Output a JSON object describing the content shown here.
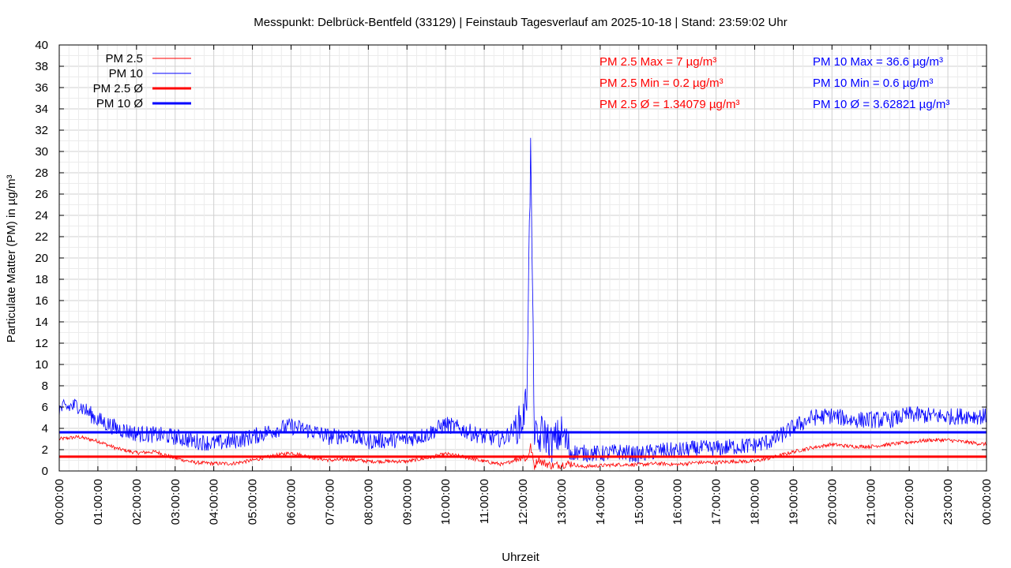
{
  "chart_data": {
    "type": "line",
    "title": "Messpunkt: Delbrück-Bentfeld (33129) | Feinstaub Tagesverlauf am 2025-10-18 | Stand: 23:59:02 Uhr",
    "xlabel": "Uhrzeit",
    "ylabel": "Particulate Matter (PM) in µg/m³",
    "ylim": [
      0,
      40
    ],
    "xlim_hours": [
      0,
      24
    ],
    "grid": true,
    "legend_position": "top-left",
    "x_tick_labels": [
      "00:00:00",
      "01:00:00",
      "02:00:00",
      "03:00:00",
      "04:00:00",
      "05:00:00",
      "06:00:00",
      "07:00:00",
      "08:00:00",
      "09:00:00",
      "10:00:00",
      "11:00:00",
      "12:00:00",
      "13:00:00",
      "14:00:00",
      "15:00:00",
      "16:00:00",
      "17:00:00",
      "18:00:00",
      "19:00:00",
      "20:00:00",
      "21:00:00",
      "22:00:00",
      "23:00:00",
      "00:00:00"
    ],
    "y_ticks": [
      0,
      2,
      4,
      6,
      8,
      10,
      12,
      14,
      16,
      18,
      20,
      22,
      24,
      26,
      28,
      30,
      32,
      34,
      36,
      38,
      40
    ],
    "x_hours": [
      0,
      0.5,
      1,
      1.5,
      2,
      2.5,
      3,
      3.5,
      4,
      4.5,
      5,
      5.5,
      6,
      6.5,
      7,
      7.5,
      8,
      8.5,
      9,
      9.5,
      10,
      10.5,
      11,
      11.5,
      12,
      12.1,
      12.2,
      12.3,
      12.4,
      12.5,
      12.75,
      13,
      13.25,
      13.5,
      14,
      14.5,
      15,
      15.5,
      16,
      16.5,
      17,
      17.5,
      18,
      18.5,
      19,
      19.5,
      20,
      20.5,
      21,
      21.5,
      22,
      22.5,
      23,
      23.5,
      24
    ],
    "series": [
      {
        "name": "PM 2.5",
        "color": "#ff0000",
        "style": "thin",
        "values": [
          3.0,
          3.2,
          2.8,
          2.1,
          1.7,
          1.8,
          1.2,
          0.8,
          0.7,
          0.7,
          1.0,
          1.4,
          1.7,
          1.3,
          1.0,
          1.1,
          0.9,
          0.9,
          0.9,
          1.2,
          1.6,
          1.3,
          0.9,
          0.6,
          1.4,
          1.0,
          2.3,
          0.4,
          1.2,
          0.8,
          0.5,
          0.6,
          0.7,
          0.4,
          0.5,
          0.6,
          0.6,
          0.7,
          0.6,
          0.8,
          0.8,
          0.9,
          0.9,
          1.3,
          1.8,
          2.2,
          2.5,
          2.3,
          2.3,
          2.5,
          2.7,
          2.9,
          2.9,
          2.7,
          2.5
        ]
      },
      {
        "name": "PM 10",
        "color": "#0000ff",
        "style": "thin",
        "values": [
          5.8,
          6.2,
          4.8,
          4.0,
          3.5,
          3.4,
          3.2,
          2.8,
          2.6,
          2.8,
          3.2,
          3.8,
          4.2,
          3.8,
          3.2,
          3.4,
          2.8,
          2.9,
          3.0,
          3.4,
          4.4,
          3.8,
          3.2,
          3.0,
          4.8,
          7.0,
          30.0,
          3.5,
          2.5,
          3.8,
          2.5,
          3.6,
          1.8,
          1.7,
          1.6,
          1.8,
          1.5,
          1.9,
          1.9,
          2.1,
          2.1,
          2.3,
          2.4,
          2.9,
          4.1,
          5.0,
          5.2,
          4.8,
          4.8,
          4.8,
          5.3,
          5.2,
          5.1,
          5.2,
          5.1
        ]
      },
      {
        "name": "PM 2.5 Ø",
        "color": "#ff0000",
        "style": "thick",
        "constant": 1.34079
      },
      {
        "name": "PM 10 Ø",
        "color": "#0000ff",
        "style": "thick",
        "constant": 3.62821
      }
    ],
    "annotations": {
      "pm25": {
        "color": "#ff0000",
        "lines": [
          "PM 2.5 Max = 7 µg/m³",
          "PM 2.5 Min = 0.2 µg/m³",
          "PM 2.5 Ø = 1.34079 µg/m³"
        ]
      },
      "pm10": {
        "color": "#0000ff",
        "lines": [
          "PM 10 Max = 36.6 µg/m³",
          "PM 10 Min = 0.6 µg/m³",
          "PM 10 Ø = 3.62821 µg/m³"
        ]
      }
    }
  }
}
